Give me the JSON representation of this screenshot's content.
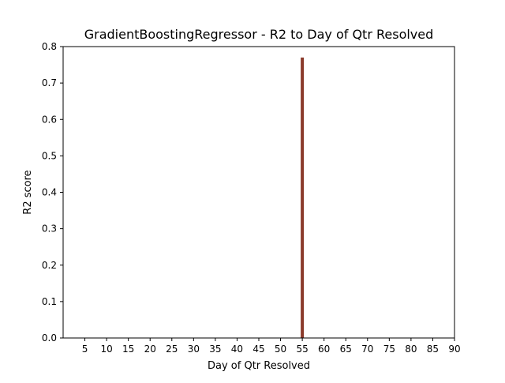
{
  "chart_data": {
    "type": "bar",
    "title": "GradientBoostingRegressor - R2 to Day of Qtr Resolved",
    "xlabel": "Day of Qtr Resolved",
    "ylabel": "R2 score",
    "xlim": [
      0,
      90
    ],
    "ylim": [
      0,
      0.8
    ],
    "x_ticks": [
      "5",
      "10",
      "15",
      "20",
      "25",
      "30",
      "35",
      "40",
      "45",
      "50",
      "55",
      "60",
      "65",
      "70",
      "75",
      "80",
      "85",
      "90"
    ],
    "y_ticks": [
      "0.0",
      "0.1",
      "0.2",
      "0.3",
      "0.4",
      "0.5",
      "0.6",
      "0.7",
      "0.8"
    ],
    "grid": false,
    "legend": "none",
    "bar_color": "#8b3a2b",
    "series": [
      {
        "x": [
          55
        ],
        "values": [
          0.77
        ]
      }
    ]
  }
}
